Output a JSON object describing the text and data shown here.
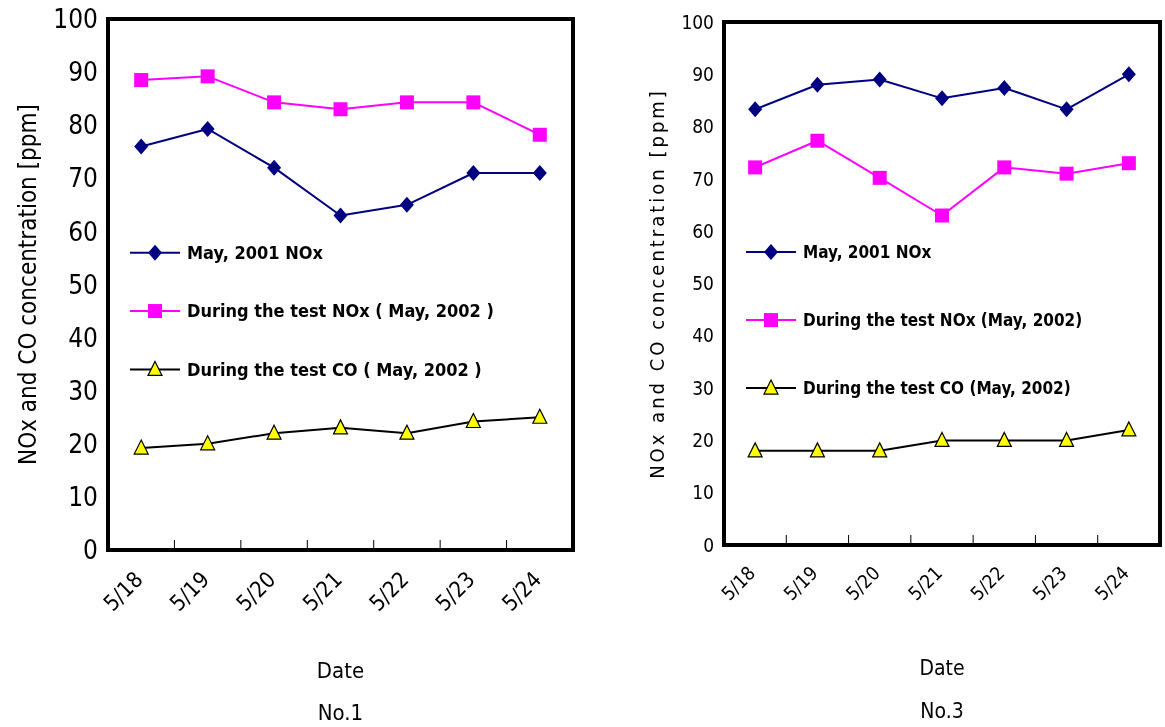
{
  "chart_data": [
    {
      "type": "line",
      "title": "No.1",
      "xlabel": "Date",
      "ylabel": "NOx and CO concentration [ppm]",
      "categories": [
        "5/18",
        "5/19",
        "5/20",
        "5/21",
        "5/22",
        "5/23",
        "5/24"
      ],
      "ylim": [
        0,
        100
      ],
      "yticks": [
        0,
        10,
        20,
        30,
        40,
        50,
        60,
        70,
        80,
        90,
        100
      ],
      "grid": false,
      "legend": "left",
      "series": [
        {
          "name": "May, 2001 NOx",
          "color": "#000080",
          "marker": "diamond",
          "values": [
            76,
            79.3,
            72,
            63,
            65,
            71,
            71
          ]
        },
        {
          "name": "During the test NOx ( May, 2002 )",
          "color": "#ff00ff",
          "marker": "square",
          "values": [
            88.5,
            89.2,
            84.3,
            83,
            84.3,
            84.3,
            78.2
          ]
        },
        {
          "name": "During the test CO ( May, 2002 )",
          "color": "#000000",
          "marker": "triangle",
          "values": [
            19.2,
            20,
            22,
            23,
            22,
            24.2,
            25
          ]
        }
      ]
    },
    {
      "type": "line",
      "title": "No.3",
      "xlabel": "Date",
      "ylabel": "NOx and CO concentration [ppm]",
      "categories": [
        "5/18",
        "5/19",
        "5/20",
        "5/21",
        "5/22",
        "5/23",
        "5/24"
      ],
      "ylim": [
        0,
        100
      ],
      "yticks": [
        0,
        10,
        20,
        30,
        40,
        50,
        60,
        70,
        80,
        90,
        100
      ],
      "grid": false,
      "legend": "left",
      "series": [
        {
          "name": "May, 2001 NOx",
          "color": "#000080",
          "marker": "diamond",
          "values": [
            83.3,
            88,
            89,
            85.4,
            87.4,
            83.3,
            90
          ]
        },
        {
          "name": "During the test NOx (May, 2002)",
          "color": "#ff00ff",
          "marker": "square",
          "values": [
            72.2,
            77.3,
            70.2,
            63,
            72.2,
            71,
            73
          ]
        },
        {
          "name": "During the test CO (May, 2002)",
          "color": "#000000",
          "marker": "triangle",
          "values": [
            18,
            18,
            18,
            20,
            20,
            20,
            22
          ]
        }
      ]
    }
  ]
}
